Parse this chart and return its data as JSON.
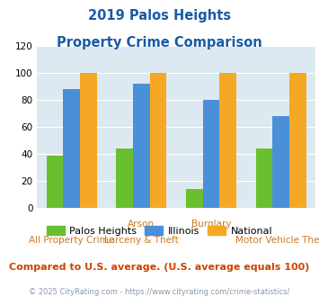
{
  "title_line1": "2019 Palos Heights",
  "title_line2": "Property Crime Comparison",
  "groups": [
    {
      "palos": 39,
      "illinois": 88,
      "national": 100
    },
    {
      "palos": 44,
      "illinois": 92,
      "national": 100
    },
    {
      "palos": 14,
      "illinois": 80,
      "national": 100
    },
    {
      "palos": 44,
      "illinois": 68,
      "national": 100
    }
  ],
  "colors": {
    "palos": "#6abf2e",
    "illinois": "#4a90d9",
    "national": "#f5a823"
  },
  "ylim": [
    0,
    120
  ],
  "yticks": [
    0,
    20,
    40,
    60,
    80,
    100,
    120
  ],
  "plot_bg": "#dce9f0",
  "title_color": "#1a5ba6",
  "x_label_color": "#cc7722",
  "footer_note": "Compared to U.S. average. (U.S. average equals 100)",
  "footer_color": "#cc4400",
  "copyright": "© 2025 CityRating.com - https://www.cityrating.com/crime-statistics/",
  "copyright_color": "#8899aa",
  "legend_labels": [
    "Palos Heights",
    "Illinois",
    "National"
  ],
  "top_xlabels": [
    [
      "Arson",
      1
    ],
    [
      "Burglary",
      2
    ]
  ],
  "bottom_xlabels": [
    [
      "All Property Crime",
      0
    ],
    [
      "Larceny & Theft",
      1
    ],
    [
      "Motor Vehicle Theft",
      3
    ]
  ]
}
